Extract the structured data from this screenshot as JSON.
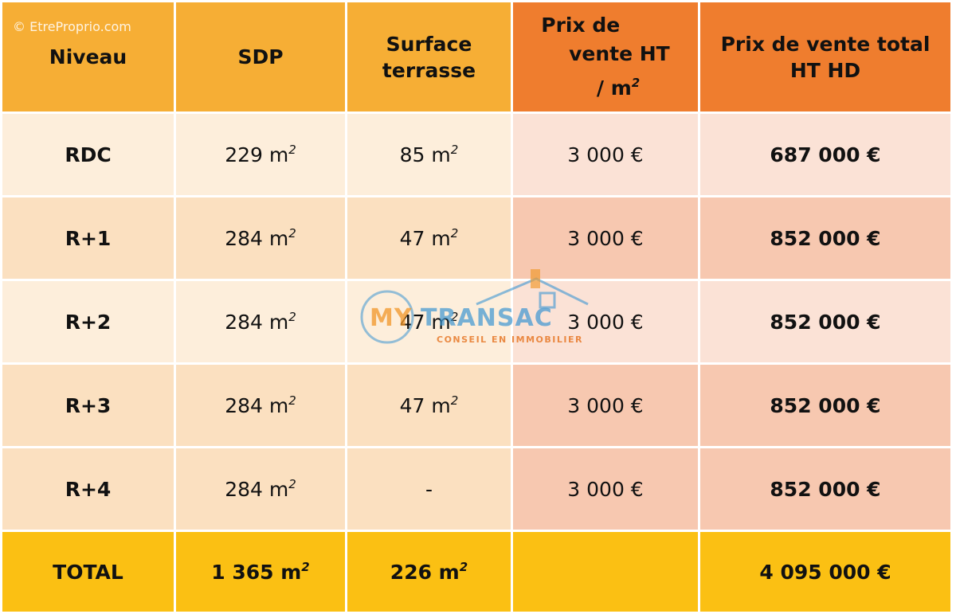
{
  "watermark": "© EtreProprio.com",
  "logo": {
    "my": "MY",
    "transac": "TRANSAC",
    "tagline": "CONSEIL EN IMMOBILIER",
    "colors": {
      "orange": "#f0962a",
      "blue": "#3c96d2"
    }
  },
  "colors": {
    "header_orange": "#f6ae35",
    "header_dark_orange": "#ef7d2e",
    "total_yellow": "#fbc013",
    "row_light": "#fdeedb",
    "row_peach": "#fbe0c0",
    "row_pink": "#fbe2d6",
    "row_salmon": "#f7c8b0"
  },
  "table": {
    "headers": {
      "niveau": "Niveau",
      "sdp": "SDP",
      "surface_l1": "Surface",
      "surface_l2": "terrasse",
      "prix_l1": "Prix de",
      "prix_l2": "vente  HT",
      "prix_l3_pre": "/ m",
      "prix_l3_sup": "2",
      "total_l1": "Prix de vente total",
      "total_l2": "HT HD"
    },
    "rows": [
      {
        "niveau": "RDC",
        "sdp": "229 m",
        "sdp_sup": "2",
        "terrasse": "85 m",
        "terrasse_sup": "2",
        "prix_m2": "3 000 €",
        "prix_total": "687 000 €"
      },
      {
        "niveau": "R+1",
        "sdp": "284 m",
        "sdp_sup": "2",
        "terrasse": "47 m",
        "terrasse_sup": "2",
        "prix_m2": "3 000 €",
        "prix_total": "852 000 €"
      },
      {
        "niveau": "R+2",
        "sdp": "284 m",
        "sdp_sup": "2",
        "terrasse": "47 m",
        "terrasse_sup": "2",
        "prix_m2": "3 000 €",
        "prix_total": "852 000 €"
      },
      {
        "niveau": "R+3",
        "sdp": "284 m",
        "sdp_sup": "2",
        "terrasse": "47 m",
        "terrasse_sup": "2",
        "prix_m2": "3 000 €",
        "prix_total": "852 000 €"
      },
      {
        "niveau": "R+4",
        "sdp": "284 m",
        "sdp_sup": "2",
        "terrasse": "-",
        "terrasse_sup": "",
        "prix_m2": "3 000 €",
        "prix_total": "852 000 €"
      }
    ],
    "total": {
      "label": "TOTAL",
      "sdp": "1 365 m",
      "sdp_sup": "2",
      "terrasse": "226 m",
      "terrasse_sup": "2",
      "prix_m2": "",
      "prix_total": "4 095 000 €"
    }
  }
}
